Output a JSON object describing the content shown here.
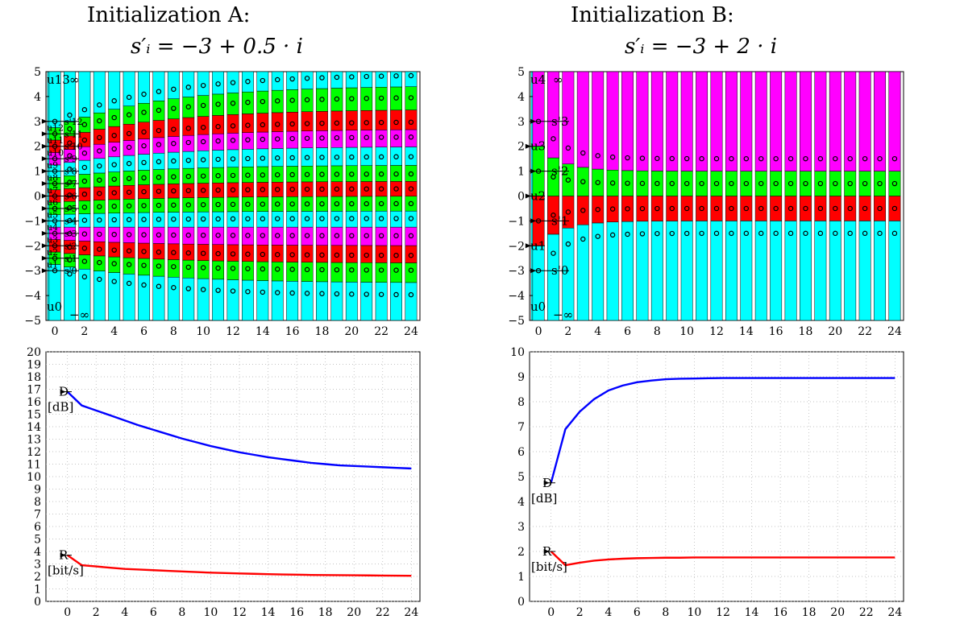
{
  "panel_a": {
    "title": "Initialization A:",
    "formula": "s′ᵢ = −3 + 0.5 · i",
    "label_top": "u13",
    "label_top_inf": "∞",
    "label_bottom": "u0",
    "label_bottom_inf": "−∞"
  },
  "panel_b": {
    "title": "Initialization B:",
    "formula": "s′ᵢ = −3 + 2 · i",
    "label_top": "u4",
    "label_top_inf": "∞",
    "label_bottom": "u0",
    "label_bottom_inf": "−∞"
  },
  "colors": {
    "cyan": "#00ffff",
    "magenta": "#ff00ff",
    "green": "#00ff00",
    "red": "#ff0000",
    "d_curve": "#0000ff",
    "r_curve": "#ff0000",
    "grid": "#b0b0b0"
  },
  "chart_data": [
    {
      "id": "a_top",
      "type": "bar",
      "description_label": "quantizer cells vs iteration, Initialization A",
      "x_ticks": [
        0,
        2,
        4,
        6,
        8,
        10,
        12,
        14,
        16,
        18,
        20,
        22,
        24
      ],
      "y_ticks": [
        -5,
        -4,
        -3,
        -2,
        -1,
        0,
        1,
        2,
        3,
        4,
        5
      ],
      "ylim": [
        -5,
        5
      ],
      "xlim": [
        -0.6,
        24.6
      ],
      "level_count": 13,
      "initial_levels": [
        -3,
        -2.5,
        -2,
        -1.5,
        -1,
        -0.5,
        0,
        0.5,
        1,
        1.5,
        2,
        2.5,
        3
      ],
      "final_levels": [
        -4,
        -3,
        -2.4,
        -1.6,
        -0.9,
        -0.3,
        0.3,
        0.9,
        1.6,
        2.4,
        3,
        4,
        4.9
      ],
      "annotations": [
        "s'12",
        "s'11",
        "s'10",
        "s'9",
        "s'8",
        "s'7",
        "s'6",
        "s'5",
        "s'4",
        "s'3",
        "s'2",
        "s'1",
        "s'0",
        "u12",
        "u11",
        "u10",
        "u9",
        "u8",
        "u7",
        "u6",
        "u5",
        "u4",
        "u3",
        "u2",
        "u1"
      ]
    },
    {
      "id": "b_top",
      "type": "bar",
      "description_label": "quantizer cells vs iteration, Initialization B",
      "x_ticks": [
        0,
        2,
        4,
        6,
        8,
        10,
        12,
        14,
        16,
        18,
        20,
        22,
        24
      ],
      "y_ticks": [
        -5,
        -4,
        -3,
        -2,
        -1,
        0,
        1,
        2,
        3,
        4,
        5
      ],
      "ylim": [
        -5,
        5
      ],
      "xlim": [
        -0.6,
        24.6
      ],
      "level_count": 4,
      "initial_levels": [
        -3,
        -1,
        1,
        3
      ],
      "final_levels": [
        -1.5,
        -0.5,
        0.5,
        1.5
      ],
      "annotations": [
        "s'3",
        "s'2",
        "s'1",
        "s'0",
        "u3",
        "u2",
        "u1"
      ]
    },
    {
      "id": "a_bottom",
      "type": "line",
      "xlim": [
        -1.5,
        24.6
      ],
      "ylim": [
        0,
        20
      ],
      "x_ticks": [
        0,
        2,
        4,
        6,
        8,
        10,
        12,
        14,
        16,
        18,
        20,
        22,
        24
      ],
      "y_ticks": [
        0,
        1,
        2,
        3,
        4,
        5,
        6,
        7,
        8,
        9,
        10,
        11,
        12,
        13,
        14,
        15,
        16,
        17,
        18,
        19,
        20
      ],
      "series": [
        {
          "name": "D",
          "unit": "[dB]",
          "color": "#0000ff",
          "x": [
            0,
            1,
            2,
            3,
            4,
            5,
            6,
            7,
            8,
            9,
            10,
            11,
            12,
            13,
            14,
            15,
            16,
            17,
            18,
            19,
            20,
            21,
            22,
            23,
            24
          ],
          "values": [
            16.8,
            15.7,
            15.3,
            14.9,
            14.5,
            14.1,
            13.75,
            13.4,
            13.05,
            12.75,
            12.45,
            12.2,
            11.95,
            11.75,
            11.55,
            11.4,
            11.25,
            11.1,
            11.0,
            10.9,
            10.85,
            10.8,
            10.75,
            10.7,
            10.65
          ]
        },
        {
          "name": "R",
          "unit": "[bit/s]",
          "color": "#ff0000",
          "x": [
            0,
            1,
            2,
            3,
            4,
            5,
            6,
            7,
            8,
            9,
            10,
            11,
            12,
            13,
            14,
            15,
            16,
            17,
            18,
            19,
            20,
            21,
            22,
            23,
            24
          ],
          "values": [
            3.7,
            2.9,
            2.8,
            2.7,
            2.6,
            2.55,
            2.5,
            2.45,
            2.4,
            2.35,
            2.3,
            2.27,
            2.24,
            2.21,
            2.18,
            2.16,
            2.14,
            2.12,
            2.11,
            2.1,
            2.09,
            2.08,
            2.07,
            2.06,
            2.05
          ]
        }
      ]
    },
    {
      "id": "b_bottom",
      "type": "line",
      "xlim": [
        -1.5,
        24.6
      ],
      "ylim": [
        0,
        10
      ],
      "x_ticks": [
        0,
        2,
        4,
        6,
        8,
        10,
        12,
        14,
        16,
        18,
        20,
        22,
        24
      ],
      "y_ticks": [
        0,
        1,
        2,
        3,
        4,
        5,
        6,
        7,
        8,
        9,
        10
      ],
      "series": [
        {
          "name": "D",
          "unit": "[dB]",
          "color": "#0000ff",
          "x": [
            0,
            1,
            2,
            3,
            4,
            5,
            6,
            7,
            8,
            9,
            10,
            11,
            12,
            13,
            14,
            15,
            16,
            17,
            18,
            19,
            20,
            21,
            22,
            23,
            24
          ],
          "values": [
            4.75,
            6.9,
            7.6,
            8.1,
            8.45,
            8.65,
            8.78,
            8.85,
            8.9,
            8.92,
            8.93,
            8.94,
            8.95,
            8.95,
            8.95,
            8.95,
            8.95,
            8.95,
            8.95,
            8.95,
            8.95,
            8.95,
            8.95,
            8.95,
            8.95
          ]
        },
        {
          "name": "R",
          "unit": "[bit/s]",
          "color": "#ff0000",
          "x": [
            0,
            1,
            2,
            3,
            4,
            5,
            6,
            7,
            8,
            9,
            10,
            11,
            12,
            13,
            14,
            15,
            16,
            17,
            18,
            19,
            20,
            21,
            22,
            23,
            24
          ],
          "values": [
            2.0,
            1.45,
            1.55,
            1.63,
            1.68,
            1.71,
            1.73,
            1.74,
            1.75,
            1.75,
            1.76,
            1.76,
            1.76,
            1.76,
            1.76,
            1.76,
            1.76,
            1.76,
            1.76,
            1.76,
            1.76,
            1.76,
            1.76,
            1.76,
            1.76
          ]
        }
      ]
    }
  ]
}
